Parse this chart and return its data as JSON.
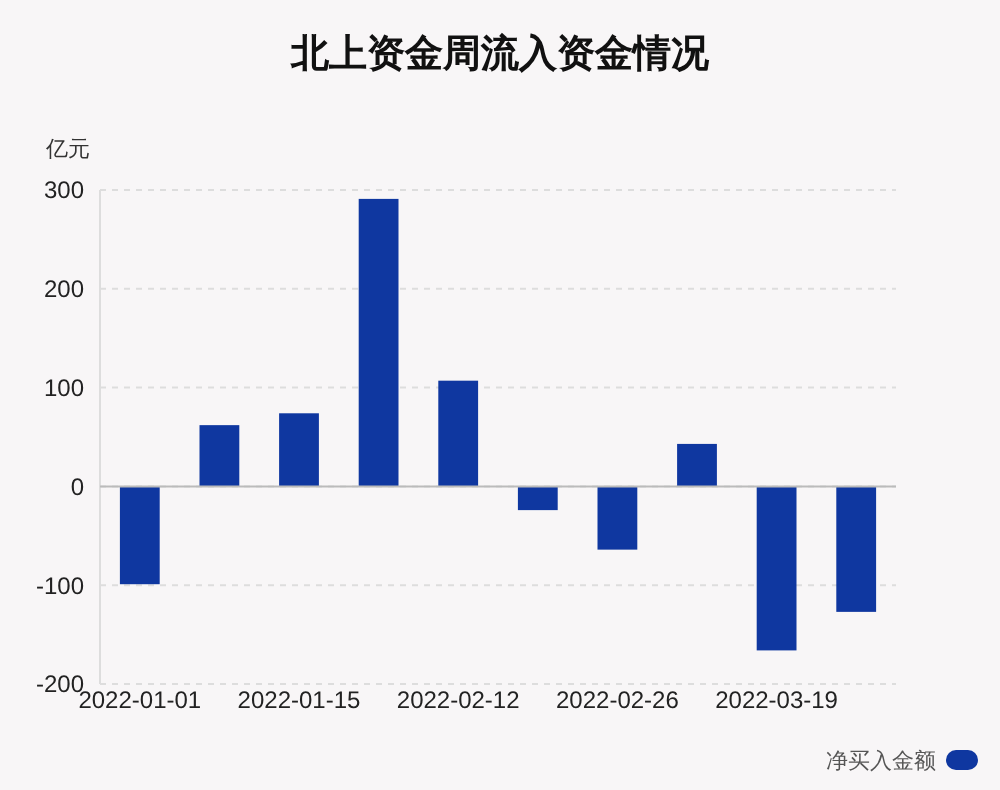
{
  "chart_data": {
    "type": "bar",
    "title": "北上资金周流入资金情况",
    "ylabel": "亿元",
    "categories": [
      "2022-01-01",
      null,
      "2022-01-15",
      null,
      "2022-02-12",
      null,
      "2022-02-26",
      null,
      "2022-03-19",
      null
    ],
    "series": [
      {
        "name": "净买入金额",
        "color": "#0f37a0",
        "values": [
          -99,
          62,
          74,
          291,
          107,
          -24,
          -64,
          43,
          -166,
          -127
        ]
      }
    ],
    "ylim": [
      -200,
      300
    ],
    "yticks": [
      -200,
      -100,
      0,
      100,
      200,
      300
    ],
    "grid": "y",
    "legend": "bottom right"
  }
}
